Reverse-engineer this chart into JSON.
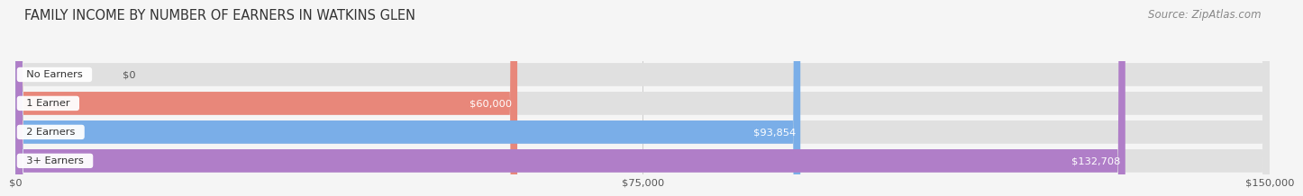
{
  "title": "FAMILY INCOME BY NUMBER OF EARNERS IN WATKINS GLEN",
  "source": "Source: ZipAtlas.com",
  "categories": [
    "No Earners",
    "1 Earner",
    "2 Earners",
    "3+ Earners"
  ],
  "values": [
    0,
    60000,
    93854,
    132708
  ],
  "labels": [
    "$0",
    "$60,000",
    "$93,854",
    "$132,708"
  ],
  "bar_colors": [
    "#f5c88a",
    "#e8877a",
    "#7aaee8",
    "#b07ec8"
  ],
  "bar_bg_color": "#e0e0e0",
  "max_value": 150000,
  "x_ticks": [
    0,
    75000,
    150000
  ],
  "x_tick_labels": [
    "$0",
    "$75,000",
    "$150,000"
  ],
  "background_color": "#f5f5f5",
  "title_fontsize": 10.5,
  "source_fontsize": 8.5,
  "label_color_inside": "#ffffff",
  "label_color_outside": "#555555"
}
